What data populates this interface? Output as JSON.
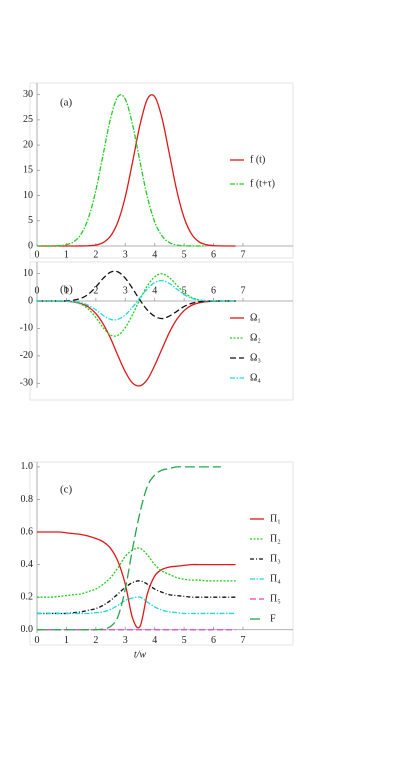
{
  "chart_data": [
    {
      "type": "line",
      "title": "(a)",
      "x": [
        0,
        0.25,
        0.5,
        0.75,
        1,
        1.25,
        1.5,
        1.75,
        2,
        2.25,
        2.5,
        2.75,
        3,
        3.25,
        3.5,
        3.75,
        4,
        4.25,
        4.5,
        4.75,
        5,
        5.25,
        5.5,
        5.75,
        6,
        6.25,
        6.5,
        6.75
      ],
      "series": [
        {
          "name": "f (t)",
          "color": "#e01818",
          "dash": "solid",
          "values": [
            0,
            0,
            0,
            0,
            0,
            0,
            0.01,
            0.05,
            0.2,
            0.68,
            1.97,
            4.78,
            9.74,
            16.7,
            24.0,
            29.1,
            29.6,
            25.3,
            18.2,
            11.0,
            5.6,
            2.39,
            0.85,
            0.26,
            0.07,
            0.02,
            0,
            0
          ]
        },
        {
          "name": "f (t+τ)",
          "color": "#22cc22",
          "dash": "dotdash",
          "values": [
            0,
            0,
            0.01,
            0.07,
            0.26,
            0.85,
            2.39,
            5.6,
            11.0,
            18.2,
            25.3,
            29.6,
            29.1,
            24.0,
            16.7,
            9.74,
            4.78,
            1.97,
            0.68,
            0.2,
            0.05,
            0.01,
            0,
            0,
            null,
            null,
            null,
            null
          ]
        }
      ],
      "xlim": [
        0,
        8.7
      ],
      "xticks": [
        0,
        1,
        2,
        3,
        4,
        5,
        6,
        7
      ],
      "ylim": [
        0,
        32.3
      ],
      "yticks": [
        0,
        5,
        10,
        15,
        20,
        25,
        30
      ],
      "legend": "right"
    },
    {
      "type": "line",
      "title": "(b)",
      "x": [
        0,
        0.25,
        0.5,
        0.75,
        1,
        1.25,
        1.5,
        1.75,
        2,
        2.25,
        2.5,
        2.75,
        3,
        3.25,
        3.5,
        3.75,
        4,
        4.25,
        4.5,
        4.75,
        5,
        5.25,
        5.5,
        5.75,
        6,
        6.25,
        6.5,
        6.75
      ],
      "series": [
        {
          "name": "Ω₁",
          "color": "#e01818",
          "dash": "solid",
          "values": [
            0,
            0,
            -0.01,
            -0.04,
            -0.13,
            -0.38,
            -0.98,
            -2.2,
            -4.6,
            -8.4,
            -13.6,
            -19.9,
            -25.8,
            -29.9,
            -30.9,
            -28.6,
            -23.5,
            -17.4,
            -11.4,
            -6.7,
            -3.5,
            -1.6,
            -0.68,
            -0.25,
            -0.08,
            -0.02,
            0,
            0
          ]
        },
        {
          "name": "Ω₂",
          "color": "#22cc22",
          "dash": "dotted",
          "values": [
            0,
            0,
            0,
            0,
            -0.09,
            -0.36,
            -1.17,
            -3.0,
            -6.0,
            -9.75,
            -12.4,
            -12.5,
            -9.7,
            -4.9,
            0.6,
            5.5,
            8.8,
            9.9,
            8.5,
            5.8,
            3.1,
            1.35,
            0.46,
            0.13,
            0.03,
            0,
            0,
            0
          ]
        },
        {
          "name": "Ω₃",
          "color": "#111111",
          "dash": "dashed",
          "values": [
            0,
            0,
            0,
            0,
            0.08,
            0.31,
            0.99,
            2.5,
            5.1,
            8.25,
            10.5,
            10.6,
            8.3,
            4.5,
            0.3,
            -3.3,
            -5.6,
            -6.4,
            -5.5,
            -3.8,
            -2.0,
            -0.88,
            -0.3,
            -0.08,
            -0.02,
            0,
            0,
            0
          ]
        },
        {
          "name": "Ω₄",
          "color": "#22d8e0",
          "dash": "dotdash",
          "values": [
            0,
            0,
            0,
            0,
            -0.05,
            -0.2,
            -0.63,
            -1.6,
            -3.2,
            -5.25,
            -6.7,
            -6.7,
            -5.05,
            -2.2,
            1.2,
            4.4,
            6.7,
            7.4,
            6.4,
            4.35,
            2.3,
            1.0,
            0.35,
            0.1,
            0.02,
            0,
            0,
            0
          ]
        }
      ],
      "xlim": [
        0,
        8.7
      ],
      "xticks": [
        0,
        1,
        2,
        3,
        4,
        5,
        6,
        7
      ],
      "ylim": [
        -31.7,
        14.2
      ],
      "yticks": [
        -30,
        -20,
        -10,
        0,
        10
      ],
      "legend": "right"
    },
    {
      "type": "line",
      "title": "(c)",
      "xlabel": "t/w",
      "x": [
        0,
        0.25,
        0.5,
        0.75,
        1,
        1.25,
        1.5,
        1.75,
        2,
        2.25,
        2.5,
        2.75,
        3,
        3.25,
        3.5,
        3.75,
        4,
        4.25,
        4.5,
        4.75,
        5,
        5.25,
        5.5,
        5.75,
        6,
        6.25,
        6.5,
        6.75
      ],
      "series": [
        {
          "name": "Π₁",
          "color": "#e01818",
          "dash": "solid",
          "values": [
            0.6,
            0.6,
            0.6,
            0.6,
            0.595,
            0.59,
            0.585,
            0.575,
            0.56,
            0.54,
            0.5,
            0.42,
            0.28,
            0.07,
            0.02,
            0.22,
            0.33,
            0.37,
            0.385,
            0.39,
            0.395,
            0.4,
            0.4,
            0.4,
            0.4,
            0.4,
            0.4,
            0.4
          ]
        },
        {
          "name": "Π₂",
          "color": "#22cc22",
          "dash": "dotted",
          "values": [
            0.2,
            0.2,
            0.2,
            0.205,
            0.21,
            0.215,
            0.22,
            0.235,
            0.25,
            0.28,
            0.32,
            0.38,
            0.45,
            0.49,
            0.5,
            0.46,
            0.4,
            0.36,
            0.34,
            0.32,
            0.31,
            0.305,
            0.305,
            0.3,
            0.3,
            0.3,
            0.3,
            0.3
          ]
        },
        {
          "name": "Π₃",
          "color": "#111111",
          "dash": "dashdot",
          "values": [
            0.1,
            0.1,
            0.1,
            0.1,
            0.1,
            0.105,
            0.11,
            0.12,
            0.13,
            0.15,
            0.18,
            0.22,
            0.26,
            0.29,
            0.3,
            0.28,
            0.25,
            0.23,
            0.215,
            0.21,
            0.205,
            0.2,
            0.2,
            0.2,
            0.2,
            0.2,
            0.2,
            0.2
          ]
        },
        {
          "name": "Π₄",
          "color": "#22d8e0",
          "dash": "dotdash",
          "values": [
            0.1,
            0.1,
            0.1,
            0.1,
            0.1,
            0.1,
            0.1,
            0.1,
            0.105,
            0.11,
            0.125,
            0.15,
            0.18,
            0.195,
            0.2,
            0.17,
            0.14,
            0.12,
            0.11,
            0.105,
            0.1,
            0.1,
            0.1,
            0.1,
            0.1,
            0.1,
            0.1,
            0.1
          ]
        },
        {
          "name": "Π₅",
          "color": "#e040c8",
          "dash": "dashed",
          "values": [
            0,
            0,
            0,
            0,
            0,
            0,
            0,
            0,
            0,
            0,
            0,
            0,
            0,
            0,
            0,
            0,
            0,
            0,
            0,
            0,
            0,
            0,
            0,
            0,
            0,
            0,
            0,
            0
          ]
        },
        {
          "name": "F",
          "color": "#22a84a",
          "dash": "longdash",
          "values": [
            0,
            0,
            0,
            0,
            0,
            0,
            0,
            0,
            0,
            0.005,
            0.02,
            0.08,
            0.25,
            0.5,
            0.72,
            0.88,
            0.95,
            0.98,
            0.99,
            1.0,
            1.0,
            1.0,
            1.0,
            1.0,
            1.0,
            1.0,
            null,
            null
          ]
        }
      ],
      "xlim": [
        0,
        8.7
      ],
      "xticks": [
        0,
        1,
        2,
        3,
        4,
        5,
        6,
        7
      ],
      "ylim": [
        -0.02,
        1.03
      ],
      "yticks": [
        {
          "value": 0,
          "label": "0.0"
        },
        0.2,
        0.4,
        0.6,
        0.8,
        {
          "value": 1,
          "label": "1.0"
        }
      ],
      "legend": "right"
    }
  ]
}
